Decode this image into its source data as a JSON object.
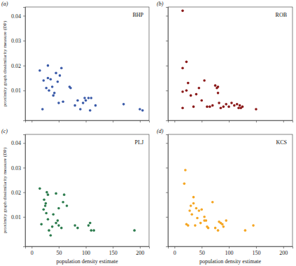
{
  "chart_data": [
    {
      "type": "scatter",
      "title": "BHP",
      "subtitle": "(a)",
      "ylabel": "proximity graph dissimilarity measure (DP)",
      "color": "#3b5ba9",
      "marker": "circle",
      "tick_labels": "y",
      "xlim": [
        -12,
        217
      ],
      "ylim": [
        -0.002,
        0.0435
      ],
      "xticks": [
        0,
        50,
        100,
        150,
        200
      ],
      "yticks": [
        0.01,
        0.02,
        0.03,
        0.04
      ],
      "x": [
        15,
        20,
        22,
        27,
        30,
        30,
        32,
        35,
        38,
        40,
        42,
        45,
        48,
        50,
        52,
        55,
        58,
        70,
        72,
        80,
        85,
        90,
        95,
        98,
        100,
        105,
        108,
        110,
        118,
        170,
        200,
        205
      ],
      "values": [
        0.018,
        0.0025,
        0.014,
        0.011,
        0.015,
        0.02,
        0.01,
        0.0145,
        0.0115,
        0.008,
        0.009,
        0.017,
        0.0135,
        0.005,
        0.016,
        0.019,
        0.0055,
        0.0115,
        0.011,
        0.004,
        0.006,
        0.0025,
        0.005,
        0.007,
        0.006,
        0.007,
        0.002,
        0.007,
        0.004,
        0.0045,
        0.0025,
        0.002
      ]
    },
    {
      "type": "scatter",
      "title": "ROB",
      "subtitle": "(b)",
      "color": "#8b1a1a",
      "marker": "circle",
      "tick_labels": false,
      "xlim": [
        -12,
        217
      ],
      "ylim": [
        -0.002,
        0.0435
      ],
      "xticks": [
        0,
        50,
        100,
        150,
        200
      ],
      "yticks": [
        0.01,
        0.02,
        0.03,
        0.04
      ],
      "x": [
        15,
        15,
        15,
        15,
        22,
        22,
        25,
        30,
        35,
        40,
        45,
        50,
        55,
        60,
        65,
        70,
        75,
        78,
        80,
        80,
        82,
        85,
        90,
        95,
        100,
        105,
        110,
        115,
        118,
        120,
        122,
        125,
        150
      ],
      "values": [
        0.042,
        0.019,
        0.0095,
        0.003,
        0.0215,
        0.01,
        0.013,
        0.008,
        0.0035,
        0.0085,
        0.011,
        0.006,
        0.014,
        0.0035,
        0.0035,
        0.004,
        0.012,
        0.011,
        0.0115,
        0.009,
        0.005,
        0.003,
        0.0035,
        0.0045,
        0.0035,
        0.005,
        0.004,
        0.0045,
        0.003,
        0.004,
        0.003,
        0.0035,
        0.0025
      ]
    },
    {
      "type": "scatter",
      "title": "PLJ",
      "subtitle": "(c)",
      "ylabel": "proximity graph dissimilarity measure (DP)",
      "xlabel": "population density estimate",
      "color": "#2e7d4f",
      "marker": "circle",
      "tick_labels": true,
      "xlim": [
        -12,
        217
      ],
      "ylim": [
        -0.002,
        0.0435
      ],
      "xticks": [
        0,
        50,
        100,
        150,
        200
      ],
      "yticks": [
        0.01,
        0.02,
        0.03,
        0.04
      ],
      "x": [
        15,
        18,
        22,
        23,
        25,
        26,
        27,
        28,
        30,
        30,
        32,
        35,
        38,
        40,
        45,
        45,
        48,
        50,
        50,
        55,
        58,
        60,
        65,
        80,
        85,
        105,
        108,
        110,
        115,
        190
      ],
      "values": [
        0.0215,
        0.007,
        0.013,
        0.017,
        0.0145,
        0.0155,
        0.0115,
        0.02,
        0.019,
        0.009,
        0.0045,
        0.0025,
        0.006,
        0.011,
        0.0075,
        0.0195,
        0.0085,
        0.0135,
        0.0065,
        0.0055,
        0.016,
        0.019,
        0.0145,
        0.0065,
        0.0055,
        0.0065,
        0.0075,
        0.0045,
        0.0045,
        0.0045
      ]
    },
    {
      "type": "scatter",
      "title": "KCS",
      "subtitle": "(d)",
      "xlabel": "population density estimate",
      "color": "#f5a623",
      "marker": "circle",
      "tick_labels": "x",
      "xlim": [
        -12,
        217
      ],
      "ylim": [
        -0.002,
        0.0435
      ],
      "xticks": [
        0,
        50,
        100,
        150,
        200
      ],
      "yticks": [
        0.01,
        0.02,
        0.03,
        0.04
      ],
      "x": [
        18,
        20,
        22,
        25,
        28,
        30,
        32,
        35,
        35,
        38,
        40,
        42,
        45,
        48,
        50,
        55,
        55,
        58,
        60,
        62,
        70,
        75,
        80,
        82,
        85,
        88,
        90,
        95,
        130,
        145
      ],
      "values": [
        0.0235,
        0.029,
        0.007,
        0.0065,
        0.0125,
        0.0145,
        0.011,
        0.0155,
        0.018,
        0.0065,
        0.0135,
        0.0095,
        0.0125,
        0.0075,
        0.013,
        0.01,
        0.0085,
        0.0085,
        0.006,
        0.0055,
        0.016,
        0.0055,
        0.0045,
        0.008,
        0.0075,
        0.007,
        0.006,
        0.0085,
        0.0045,
        0.0065
      ]
    }
  ]
}
